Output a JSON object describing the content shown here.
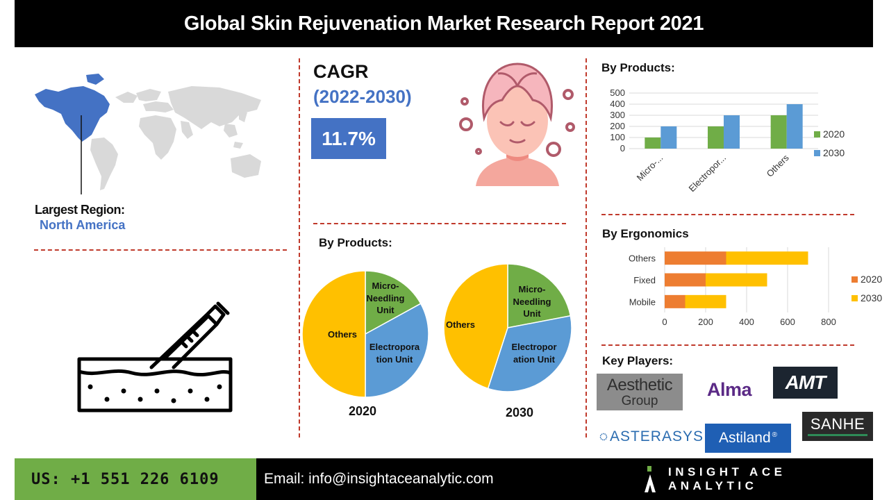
{
  "header": {
    "title": "Global Skin Rejuvenation Market Research Report 2021"
  },
  "region": {
    "label": "Largest Region:",
    "value": "North America"
  },
  "cagr": {
    "title": "CAGR",
    "years": "(2022-2030)",
    "value": "11.7%"
  },
  "pies_title": "By Products:",
  "bar_title": "By Products:",
  "hbar_title": "By Ergonomics",
  "key_players_title": "Key Players:",
  "key_players": [
    {
      "line1": "Aesthetic",
      "line2": "Group"
    },
    {
      "name": "Alma"
    },
    {
      "name": "AMT"
    },
    {
      "name": "ASTERASYS"
    },
    {
      "name": "Astiland",
      "mark": "®"
    },
    {
      "name": "SANHE"
    }
  ],
  "colors": {
    "green": "#70ad47",
    "blue": "#5b9bd5",
    "orange": "#ed7d31",
    "yellow": "#ffc000",
    "accent": "#4472c4",
    "dash": "#c0392b"
  },
  "footer": {
    "phone": "US:  +1 551 226 6109",
    "email": "Email: info@insightaceanalytic.com",
    "brand": "INSIGHT ACE ANALYTIC"
  },
  "chart_data": [
    {
      "type": "bar",
      "categories": [
        "Micro-...",
        "Electropor...",
        "Others"
      ],
      "series": [
        {
          "name": "2020",
          "values": [
            100,
            200,
            300
          ]
        },
        {
          "name": "2030",
          "values": [
            200,
            300,
            400
          ]
        }
      ],
      "ylim": [
        0,
        500
      ],
      "yticks": [
        0,
        100,
        200,
        300,
        400,
        500
      ],
      "legend": "right"
    },
    {
      "type": "bar",
      "orientation": "horizontal",
      "categories": [
        "Mobile",
        "Fixed",
        "Others"
      ],
      "series": [
        {
          "name": "2020",
          "values": [
            100,
            200,
            300
          ]
        },
        {
          "name": "2030",
          "values": [
            200,
            300,
            400
          ]
        }
      ],
      "stacked": true,
      "xlim": [
        0,
        800
      ],
      "xticks": [
        0,
        200,
        400,
        600,
        800
      ],
      "legend": "right"
    },
    {
      "type": "pie",
      "caption": "2020",
      "slices": [
        {
          "label": "Micro-\nNeedling\nUnit",
          "value": 17
        },
        {
          "label": "Electropora\ntion Unit",
          "value": 33
        },
        {
          "label": "Others",
          "value": 50
        }
      ]
    },
    {
      "type": "pie",
      "caption": "2030",
      "slices": [
        {
          "label": "Micro-\nNeedling\nUnit",
          "value": 22
        },
        {
          "label": "Electropor\nation Unit",
          "value": 33
        },
        {
          "label": "Others",
          "value": 45
        }
      ]
    }
  ]
}
